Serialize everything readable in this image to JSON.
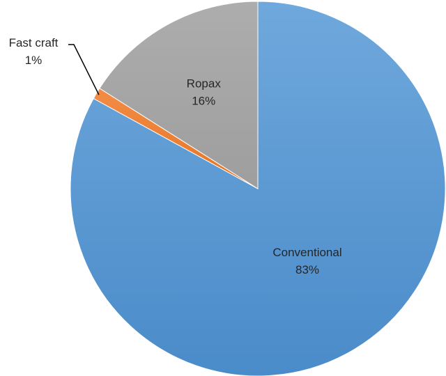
{
  "chart_data": {
    "type": "pie",
    "categories": [
      "Conventional",
      "Fast craft",
      "Ropax"
    ],
    "values": [
      83,
      1,
      16
    ],
    "labels": [
      "83%",
      "1%",
      "16%"
    ],
    "colors": [
      "#5b9bd5",
      "#ed7d31",
      "#a5a5a5"
    ],
    "start_angle_deg": 0,
    "direction": "clockwise",
    "legend": "none",
    "title": ""
  }
}
